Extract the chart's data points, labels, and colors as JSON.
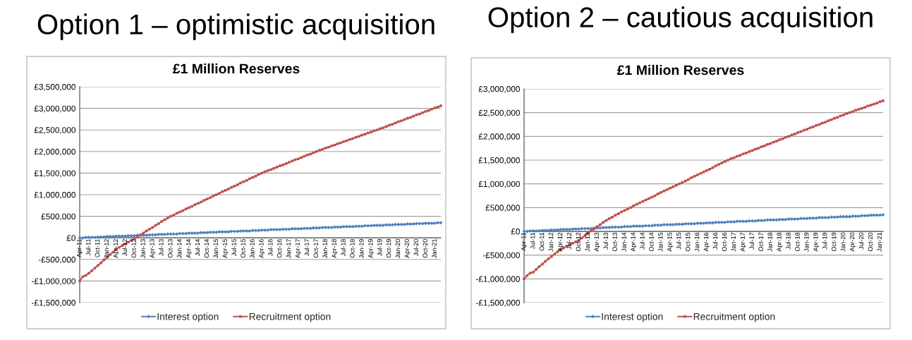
{
  "chart_data": [
    {
      "type": "line",
      "title": "Option 1 – optimistic acquisition",
      "subtitle": "£1 Million Reserves",
      "categories": [
        "Apr-11",
        null,
        null,
        "Jul-11",
        null,
        null,
        "Oct-11",
        null,
        null,
        "Jan-12",
        null,
        null,
        "Apr-12",
        null,
        null,
        "Jul-12",
        null,
        null,
        "Oct-12",
        null,
        null,
        "Jan-13",
        null,
        null,
        "Apr-13",
        null,
        null,
        "Jul-13",
        null,
        null,
        "Oct-13",
        null,
        null,
        "Jan-14",
        null,
        null,
        "Apr-14",
        null,
        null,
        "Jul-14",
        null,
        null,
        "Oct-14",
        null,
        null,
        "Jan-15",
        null,
        null,
        "Apr-15",
        null,
        null,
        "Jul-15",
        null,
        null,
        "Oct-15",
        null,
        null,
        "Jan-16",
        null,
        null,
        "Apr-16",
        null,
        null,
        "Jul-16",
        null,
        null,
        "Oct-16",
        null,
        null,
        "Jan-17",
        null,
        null,
        "Apr-17",
        null,
        null,
        "Jul-17",
        null,
        null,
        "Oct-17",
        null,
        null,
        "Jan-18",
        null,
        null,
        "Apr-18",
        null,
        null,
        "Jul-18",
        null,
        null,
        "Oct-18",
        null,
        null,
        "Jan-19",
        null,
        null,
        "Apr-19",
        null,
        null,
        "Jul-19",
        null,
        null,
        "Oct-19",
        null,
        null,
        "Jan-20",
        null,
        null,
        "Apr-20",
        null,
        null,
        "Jul-20",
        null,
        null,
        "Oct-20",
        null,
        null,
        "Jan-21",
        null,
        null
      ],
      "series": [
        {
          "name": "Interest option",
          "color": "#4f81bd",
          "marker": "diamond",
          "values": [
            0,
            0,
            10000,
            10000,
            10000,
            10000,
            20000,
            20000,
            20000,
            30000,
            30000,
            30000,
            40000,
            40000,
            40000,
            40000,
            50000,
            50000,
            50000,
            60000,
            60000,
            60000,
            60000,
            70000,
            70000,
            70000,
            80000,
            80000,
            80000,
            90000,
            90000,
            90000,
            90000,
            100000,
            100000,
            100000,
            110000,
            110000,
            110000,
            110000,
            120000,
            120000,
            120000,
            130000,
            130000,
            130000,
            140000,
            140000,
            140000,
            140000,
            150000,
            150000,
            150000,
            160000,
            160000,
            160000,
            160000,
            170000,
            170000,
            170000,
            180000,
            180000,
            180000,
            190000,
            190000,
            190000,
            190000,
            200000,
            200000,
            200000,
            210000,
            210000,
            210000,
            210000,
            220000,
            220000,
            220000,
            230000,
            230000,
            230000,
            240000,
            240000,
            240000,
            240000,
            250000,
            250000,
            250000,
            260000,
            260000,
            260000,
            260000,
            270000,
            270000,
            270000,
            280000,
            280000,
            280000,
            290000,
            290000,
            290000,
            290000,
            300000,
            300000,
            300000,
            310000,
            310000,
            310000,
            310000,
            320000,
            320000,
            320000,
            330000,
            330000,
            330000,
            340000,
            340000,
            340000,
            340000,
            350000,
            350000
          ]
        },
        {
          "name": "Recruitment option",
          "color": "#c0504d",
          "marker": "square",
          "values": [
            -1000000,
            -900000,
            -870000,
            -820000,
            -760000,
            -700000,
            -640000,
            -580000,
            -510000,
            -450000,
            -390000,
            -330000,
            -260000,
            -220000,
            -180000,
            -140000,
            -100000,
            -60000,
            -20000,
            20000,
            70000,
            110000,
            160000,
            200000,
            240000,
            290000,
            330000,
            380000,
            420000,
            460000,
            500000,
            530000,
            570000,
            600000,
            630000,
            670000,
            700000,
            730000,
            770000,
            800000,
            830000,
            870000,
            900000,
            930000,
            970000,
            1000000,
            1030000,
            1070000,
            1100000,
            1130000,
            1170000,
            1200000,
            1230000,
            1270000,
            1300000,
            1330000,
            1370000,
            1400000,
            1430000,
            1470000,
            1500000,
            1530000,
            1560000,
            1580000,
            1610000,
            1640000,
            1670000,
            1690000,
            1720000,
            1750000,
            1780000,
            1810000,
            1830000,
            1860000,
            1890000,
            1920000,
            1940000,
            1970000,
            2000000,
            2030000,
            2050000,
            2080000,
            2100000,
            2130000,
            2150000,
            2180000,
            2200000,
            2230000,
            2250000,
            2280000,
            2300000,
            2330000,
            2350000,
            2380000,
            2400000,
            2430000,
            2450000,
            2480000,
            2500000,
            2530000,
            2550000,
            2580000,
            2610000,
            2630000,
            2660000,
            2690000,
            2710000,
            2740000,
            2770000,
            2790000,
            2820000,
            2850000,
            2870000,
            2900000,
            2930000,
            2950000,
            2980000,
            3010000,
            3030000,
            3060000
          ]
        }
      ],
      "ylim": [
        -1500000,
        3500000
      ],
      "yticks": [
        {
          "value": -1500000,
          "label": "-£1,500,000"
        },
        {
          "value": -1000000,
          "label": "-£1,000,000"
        },
        {
          "value": -500000,
          "label": "-£500,000"
        },
        {
          "value": 0,
          "label": "£0"
        },
        {
          "value": 500000,
          "label": "£500,000"
        },
        {
          "value": 1000000,
          "label": "£1,000,000"
        },
        {
          "value": 1500000,
          "label": "£1,500,000"
        },
        {
          "value": 2000000,
          "label": "£2,000,000"
        },
        {
          "value": 2500000,
          "label": "£2,500,000"
        },
        {
          "value": 3000000,
          "label": "£3,000,000"
        },
        {
          "value": 3500000,
          "label": "£3,500,000"
        }
      ],
      "grid": "y",
      "legend": "bottom"
    },
    {
      "type": "line",
      "title": "Option 2 – cautious acquisition",
      "subtitle": "£1 Million Reserves",
      "categories": [
        "Apr-11",
        null,
        null,
        "Jul-11",
        null,
        null,
        "Oct-11",
        null,
        null,
        "Jan-12",
        null,
        null,
        "Apr-12",
        null,
        null,
        "Jul-12",
        null,
        null,
        "Oct-12",
        null,
        null,
        "Jan-13",
        null,
        null,
        "Apr-13",
        null,
        null,
        "Jul-13",
        null,
        null,
        "Oct-13",
        null,
        null,
        "Jan-14",
        null,
        null,
        "Apr-14",
        null,
        null,
        "Jul-14",
        null,
        null,
        "Oct-14",
        null,
        null,
        "Jan-15",
        null,
        null,
        "Apr-15",
        null,
        null,
        "Jul-15",
        null,
        null,
        "Oct-15",
        null,
        null,
        "Jan-16",
        null,
        null,
        "Apr-16",
        null,
        null,
        "Jul-16",
        null,
        null,
        "Oct-16",
        null,
        null,
        "Jan-17",
        null,
        null,
        "Apr-17",
        null,
        null,
        "Jul-17",
        null,
        null,
        "Oct-17",
        null,
        null,
        "Jan-18",
        null,
        null,
        "Apr-18",
        null,
        null,
        "Jul-18",
        null,
        null,
        "Oct-18",
        null,
        null,
        "Jan-19",
        null,
        null,
        "Apr-19",
        null,
        null,
        "Jul-19",
        null,
        null,
        "Oct-19",
        null,
        null,
        "Jan-20",
        null,
        null,
        "Apr-20",
        null,
        null,
        "Jul-20",
        null,
        null,
        "Oct-20",
        null,
        null,
        "Jan-21",
        null
      ],
      "series": [
        {
          "name": "Interest option",
          "color": "#4f81bd",
          "marker": "diamond",
          "values": [
            0,
            0,
            10000,
            10000,
            10000,
            10000,
            20000,
            20000,
            20000,
            30000,
            30000,
            30000,
            40000,
            40000,
            40000,
            40000,
            50000,
            50000,
            50000,
            60000,
            60000,
            60000,
            60000,
            70000,
            70000,
            70000,
            80000,
            80000,
            80000,
            90000,
            90000,
            90000,
            90000,
            100000,
            100000,
            100000,
            110000,
            110000,
            110000,
            110000,
            120000,
            120000,
            120000,
            130000,
            130000,
            130000,
            140000,
            140000,
            140000,
            140000,
            150000,
            150000,
            150000,
            160000,
            160000,
            160000,
            160000,
            170000,
            170000,
            170000,
            180000,
            180000,
            180000,
            190000,
            190000,
            190000,
            190000,
            200000,
            200000,
            200000,
            210000,
            210000,
            210000,
            210000,
            220000,
            220000,
            220000,
            230000,
            230000,
            230000,
            240000,
            240000,
            240000,
            240000,
            250000,
            250000,
            250000,
            260000,
            260000,
            260000,
            260000,
            270000,
            270000,
            270000,
            280000,
            280000,
            280000,
            290000,
            290000,
            290000,
            290000,
            300000,
            300000,
            300000,
            310000,
            310000,
            310000,
            310000,
            320000,
            320000,
            320000,
            330000,
            330000,
            330000,
            340000,
            340000,
            340000,
            340000,
            350000
          ]
        },
        {
          "name": "Recruitment option",
          "color": "#c0504d",
          "marker": "square",
          "values": [
            -1000000,
            -930000,
            -880000,
            -860000,
            -800000,
            -740000,
            -690000,
            -630000,
            -580000,
            -530000,
            -480000,
            -430000,
            -390000,
            -350000,
            -310000,
            -280000,
            -250000,
            -220000,
            -190000,
            -140000,
            -90000,
            -40000,
            10000,
            50000,
            100000,
            140000,
            190000,
            230000,
            270000,
            300000,
            340000,
            370000,
            410000,
            440000,
            470000,
            500000,
            540000,
            570000,
            600000,
            630000,
            660000,
            690000,
            720000,
            750000,
            790000,
            820000,
            850000,
            880000,
            910000,
            940000,
            970000,
            1000000,
            1030000,
            1060000,
            1090000,
            1130000,
            1160000,
            1190000,
            1220000,
            1250000,
            1280000,
            1310000,
            1340000,
            1380000,
            1410000,
            1440000,
            1470000,
            1500000,
            1530000,
            1550000,
            1580000,
            1600000,
            1630000,
            1650000,
            1680000,
            1700000,
            1730000,
            1750000,
            1780000,
            1800000,
            1830000,
            1850000,
            1880000,
            1900000,
            1930000,
            1950000,
            1980000,
            2000000,
            2030000,
            2050000,
            2080000,
            2100000,
            2130000,
            2150000,
            2180000,
            2200000,
            2230000,
            2250000,
            2280000,
            2300000,
            2330000,
            2350000,
            2380000,
            2400000,
            2430000,
            2450000,
            2480000,
            2500000,
            2520000,
            2550000,
            2570000,
            2590000,
            2610000,
            2640000,
            2660000,
            2680000,
            2700000,
            2730000,
            2750000
          ]
        }
      ],
      "ylim": [
        -1500000,
        3000000
      ],
      "yticks": [
        {
          "value": -1500000,
          "label": "-£1,500,000"
        },
        {
          "value": -1000000,
          "label": "-£1,000,000"
        },
        {
          "value": -500000,
          "label": "-£500,000"
        },
        {
          "value": 0,
          "label": "£0"
        },
        {
          "value": 500000,
          "label": "£500,000"
        },
        {
          "value": 1000000,
          "label": "£1,000,000"
        },
        {
          "value": 1500000,
          "label": "£1,500,000"
        },
        {
          "value": 2000000,
          "label": "£2,000,000"
        },
        {
          "value": 2500000,
          "label": "£2,500,000"
        },
        {
          "value": 3000000,
          "label": "£3,000,000"
        }
      ],
      "grid": "y",
      "legend": "bottom"
    }
  ]
}
